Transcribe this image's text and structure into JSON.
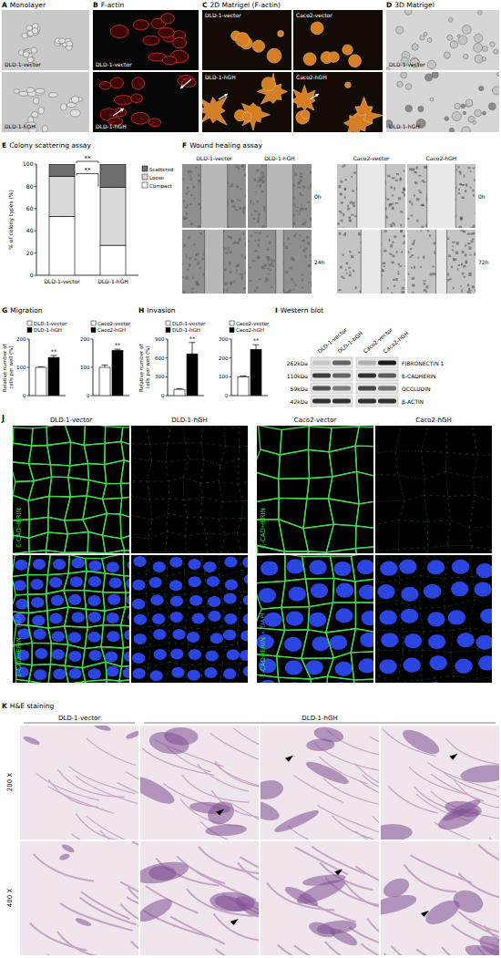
{
  "panels": {
    "A": {
      "label": "A",
      "title": "Monolayer",
      "images": [
        "DLD-1-vector",
        "DLD-1-hGH"
      ]
    },
    "B": {
      "label": "B",
      "title": "F-actin",
      "images": [
        "DLD-1-vector",
        "DLD-1-hGH"
      ]
    },
    "C": {
      "label": "C",
      "title": "2D Matrigel (F-actin)",
      "images": [
        "DLD-1-vector",
        "Caco2-vector",
        "DLD-1-hGH",
        "Caco2-hGH"
      ]
    },
    "D": {
      "label": "D",
      "title": "3D Matrigel",
      "images": [
        "DLD-1-vector",
        "DLD-1-hGH"
      ]
    },
    "E": {
      "label": "E"
    },
    "F": {
      "label": "F",
      "title": "Wound healing assay",
      "groups": [
        {
          "columns": [
            "DLD-1-vector",
            "DLD-1-hGH"
          ],
          "times": [
            "0h",
            "24h"
          ]
        },
        {
          "columns": [
            "Caco2-vector",
            "Caco2-hGH"
          ],
          "times": [
            "0h",
            "72h"
          ]
        }
      ]
    },
    "G": {
      "label": "G"
    },
    "H": {
      "label": "H"
    },
    "I": {
      "label": "I",
      "title": "Western blot",
      "columns": [
        "DLD-1-vector",
        "DLD-1-hGH",
        "Caco2-vector",
        "Caco2-hGH"
      ],
      "rows": [
        {
          "size": "262kDa",
          "protein": "FIBRONECTIN 1"
        },
        {
          "size": "110kDa",
          "protein": "E-CADHERIN"
        },
        {
          "size": "59kDa",
          "protein": "OCCLUDIN"
        },
        {
          "size": "42kDa",
          "protein": "β-ACTIN"
        }
      ]
    },
    "J": {
      "label": "J",
      "columns": [
        "DLD-1-vector",
        "DLD-1-hGH",
        "Caco2-vector",
        "Caco2-hGH"
      ],
      "rows": [
        "E-CADHERIN",
        "E-CADHERIN + DAPI"
      ]
    },
    "K": {
      "label": "K",
      "title": "H&E staining",
      "columns": [
        "DLD-1-vector",
        "DLD-1-hGH",
        "DLD-1-hGH",
        "DLD-1-hGH"
      ],
      "rows": [
        "200 X",
        "400 X"
      ]
    }
  },
  "chart_data": [
    {
      "type": "bar",
      "title": "Colony scattering assay",
      "ylabel": "% of colony types (%)",
      "categories": [
        "DLD-1-vector",
        "DLD-1-hGH"
      ],
      "stacked": true,
      "legend": "upper right",
      "ylim": [
        0,
        100
      ],
      "yticks": [
        0,
        20,
        40,
        60,
        80,
        100
      ],
      "series": [
        {
          "name": "Compact",
          "color": "#ffffff",
          "values": [
            53,
            27
          ],
          "errors": [
            2,
            2
          ]
        },
        {
          "name": "Loose",
          "color": "#d9d9d9",
          "values": [
            36,
            52
          ],
          "errors": [
            2,
            2
          ]
        },
        {
          "name": "Scattered",
          "color": "#6e6e6e",
          "values": [
            11,
            21
          ],
          "errors": [
            1,
            1
          ]
        }
      ],
      "annotations": [
        "**",
        "**"
      ]
    },
    {
      "type": "bar",
      "title": "Migration",
      "ylabel": "Relative number of cells per well (%)",
      "categories": [
        null
      ],
      "legend": "top",
      "ylim": [
        0,
        200
      ],
      "yticks": [
        0,
        100,
        200
      ],
      "series": [
        {
          "name": "DLD-1-vector",
          "color": "#ffffff",
          "values": [
            100
          ],
          "errors": [
            2
          ]
        },
        {
          "name": "DLD-1-hGH",
          "color": "#000000",
          "values": [
            135
          ],
          "errors": [
            7
          ],
          "annotation": "**"
        }
      ]
    },
    {
      "type": "bar",
      "categories": [
        null
      ],
      "legend": "top",
      "ylim": [
        0,
        200
      ],
      "yticks": [
        0,
        100,
        200
      ],
      "series": [
        {
          "name": "Caco2-vector",
          "color": "#ffffff",
          "values": [
            100
          ],
          "errors": [
            8
          ]
        },
        {
          "name": "Caco2-hGH",
          "color": "#000000",
          "values": [
            160
          ],
          "errors": [
            4
          ],
          "annotation": "**"
        }
      ]
    },
    {
      "type": "bar",
      "title": "Invasion",
      "ylabel": "Relative number of cells per well (%)",
      "categories": [
        null
      ],
      "legend": "top",
      "ylim": [
        0,
        900
      ],
      "yticks": [
        0,
        300,
        600,
        900
      ],
      "series": [
        {
          "name": "DLD-1-vector",
          "color": "#ffffff",
          "values": [
            100
          ],
          "errors": [
            10
          ]
        },
        {
          "name": "DLD-1-hGH",
          "color": "#000000",
          "values": [
            665
          ],
          "errors": [
            180
          ],
          "annotation": "**"
        }
      ]
    },
    {
      "type": "bar",
      "categories": [
        null
      ],
      "legend": "top",
      "ylim": [
        0,
        300
      ],
      "yticks": [
        0,
        100,
        200,
        300
      ],
      "series": [
        {
          "name": "Caco2-vector",
          "color": "#ffffff",
          "values": [
            100
          ],
          "errors": [
            4
          ]
        },
        {
          "name": "Caco2-hGH",
          "color": "#000000",
          "values": [
            245
          ],
          "errors": [
            25
          ],
          "annotation": "**"
        }
      ]
    }
  ]
}
